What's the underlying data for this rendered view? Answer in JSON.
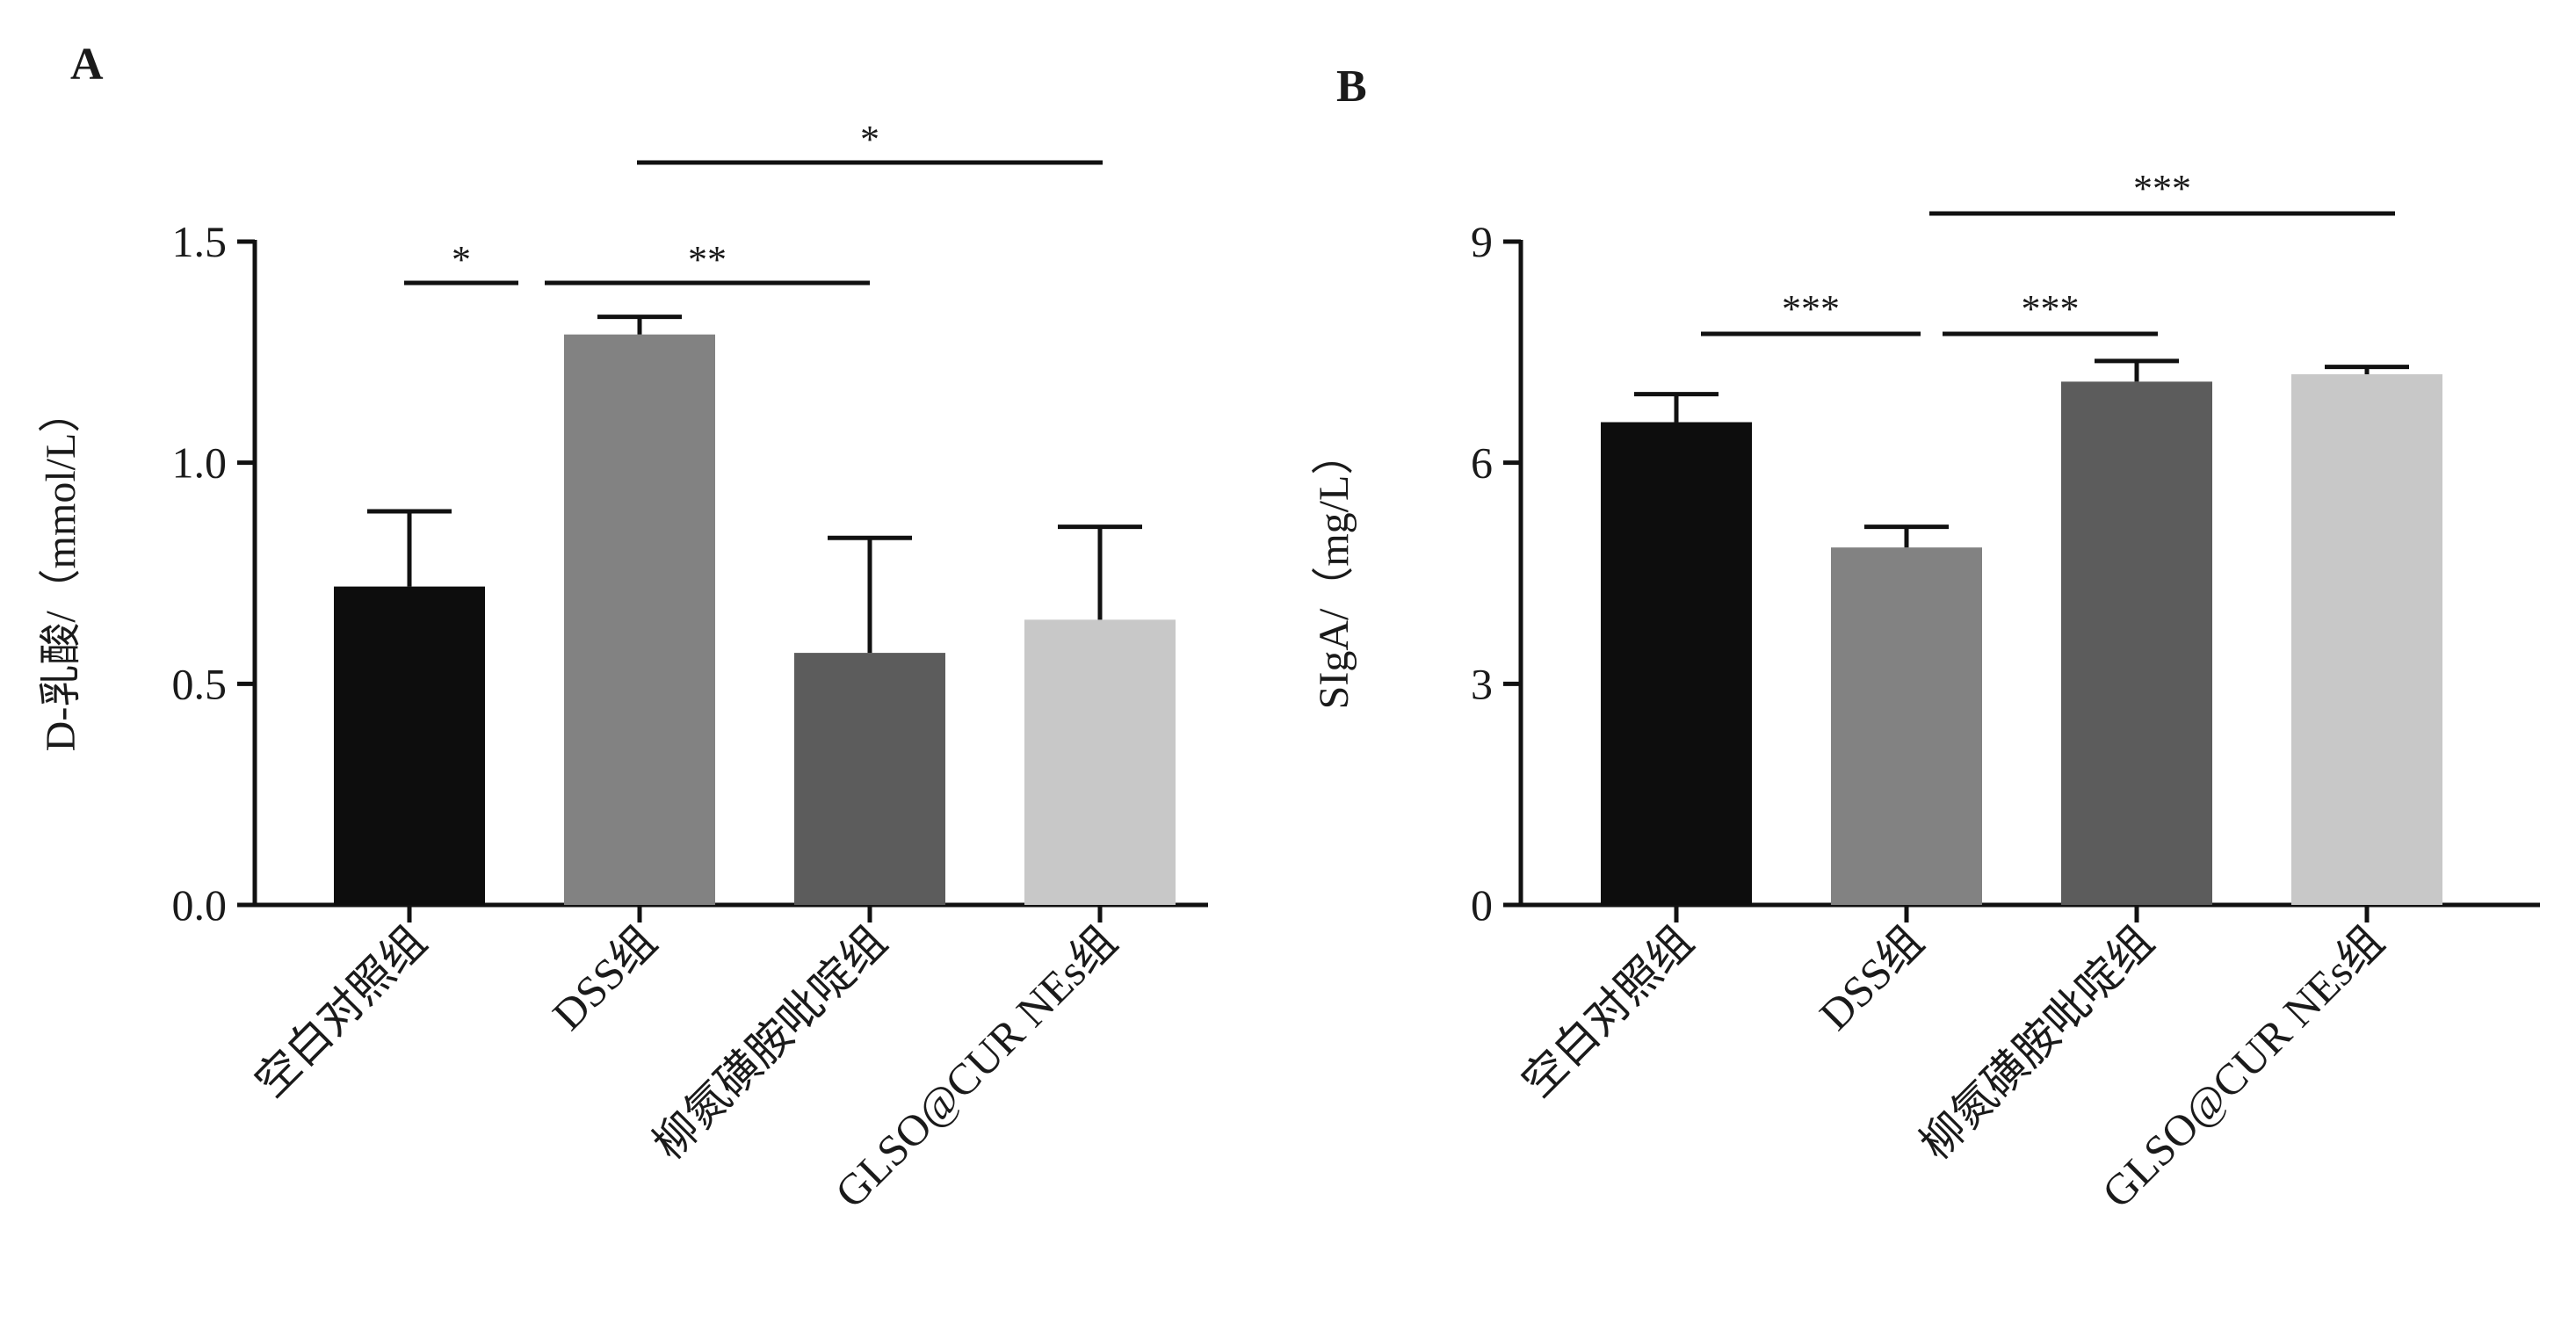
{
  "chart_data": [
    {
      "type": "bar",
      "panel_label": "A",
      "ylabel": "D-乳酸/（mmol/L）",
      "categories": [
        "空白对照组",
        "DSS组",
        "柳氮磺胺吡啶组",
        "GLSO@CUR NEs组"
      ],
      "values": [
        0.72,
        1.29,
        0.57,
        0.645
      ],
      "errors": [
        0.17,
        0.04,
        0.26,
        0.21
      ],
      "ylim": [
        0,
        1.5
      ],
      "yticks": [
        "0.0",
        "0.5",
        "1.0",
        "1.5"
      ],
      "colors": [
        "#0d0d0d",
        "#828282",
        "#5c5c5c",
        "#c8c8c8"
      ],
      "significance": [
        {
          "from": 0,
          "to": 1,
          "label": "*"
        },
        {
          "from": 1,
          "to": 2,
          "label": "**"
        },
        {
          "from": 1,
          "to": 3,
          "label": "*"
        }
      ]
    },
    {
      "type": "bar",
      "panel_label": "B",
      "ylabel": "SIgA/（mg/L）",
      "categories": [
        "空白对照组",
        "DSS组",
        "柳氮磺胺吡啶组",
        "GLSO@CUR NEs组"
      ],
      "values": [
        6.55,
        4.85,
        7.1,
        7.2
      ],
      "errors": [
        0.38,
        0.28,
        0.28,
        0.1
      ],
      "ylim": [
        0,
        9
      ],
      "yticks": [
        "0",
        "3",
        "6",
        "9"
      ],
      "colors": [
        "#0d0d0d",
        "#828282",
        "#5c5c5c",
        "#c8c8c8"
      ],
      "significance": [
        {
          "from": 0,
          "to": 1,
          "label": "***"
        },
        {
          "from": 1,
          "to": 2,
          "label": "***"
        },
        {
          "from": 1,
          "to": 3,
          "label": "***"
        }
      ]
    }
  ]
}
